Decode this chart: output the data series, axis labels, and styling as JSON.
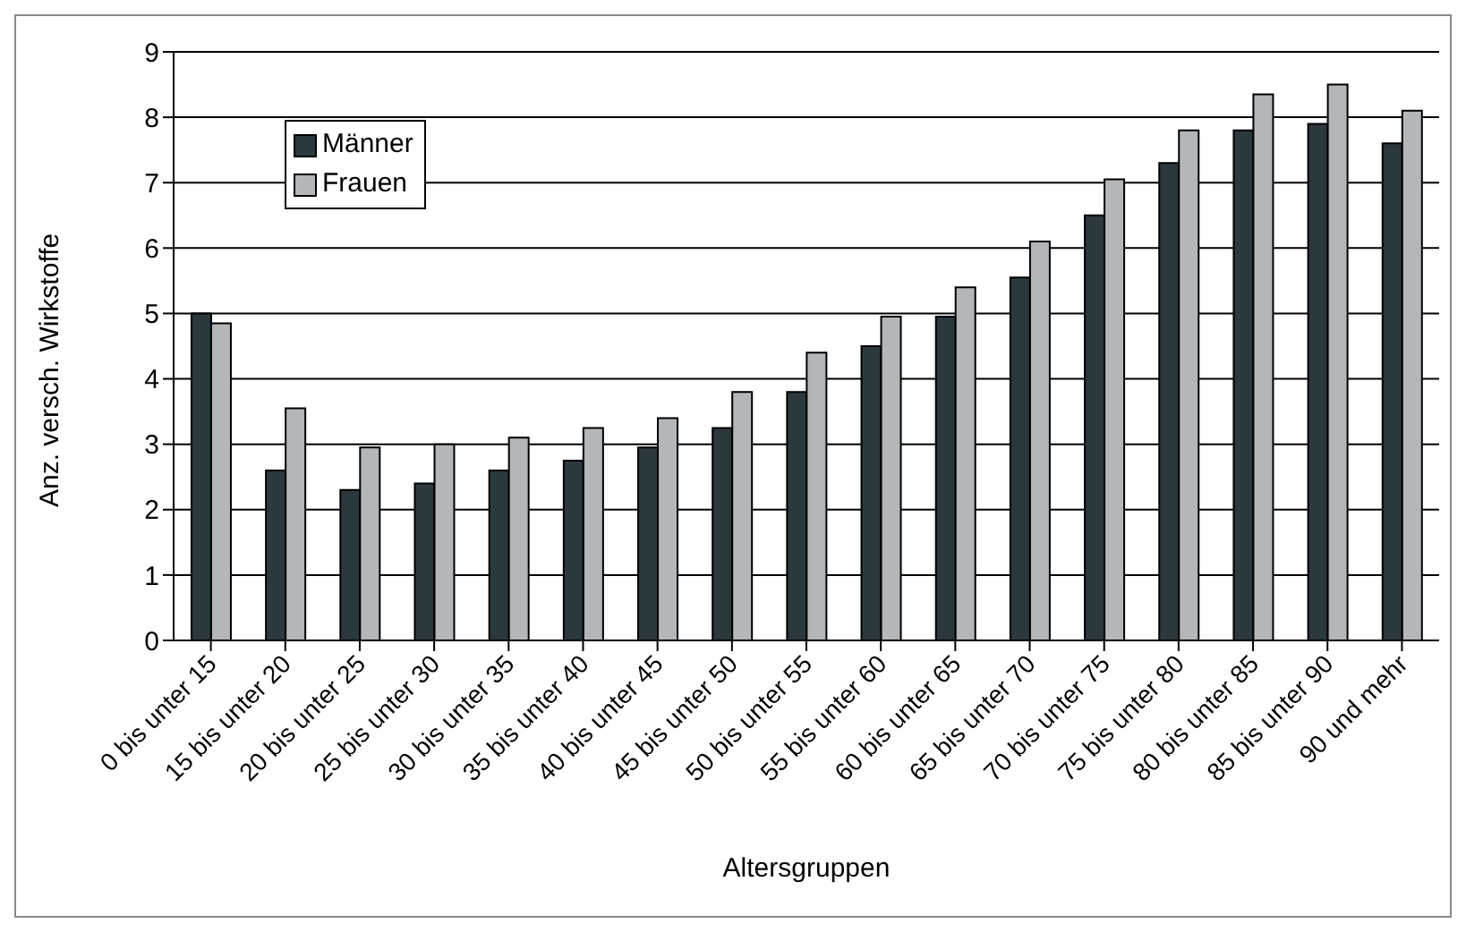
{
  "chart_data": {
    "type": "bar",
    "xlabel": "Altersgruppen",
    "ylabel": "Anz. versch. Wirkstoffe",
    "categories": [
      "0 bis unter 15",
      "15 bis unter 20",
      "20 bis unter 25",
      "25 bis unter 30",
      "30 bis unter 35",
      "35 bis unter 40",
      "40 bis unter 45",
      "45 bis unter 50",
      "50 bis unter 55",
      "55 bis unter 60",
      "60 bis unter 65",
      "65 bis unter 70",
      "70 bis unter 75",
      "75 bis unter 80",
      "80 bis unter 85",
      "85 bis unter 90",
      "90 und mehr"
    ],
    "series": [
      {
        "name": "Männer",
        "color": "#2b383c",
        "values": [
          5.0,
          2.6,
          2.3,
          2.4,
          2.6,
          2.75,
          2.95,
          3.25,
          3.8,
          4.5,
          4.95,
          5.55,
          6.5,
          7.3,
          7.8,
          7.9,
          7.6
        ]
      },
      {
        "name": "Frauen",
        "color": "#b4b7ba",
        "values": [
          4.85,
          3.55,
          2.95,
          3.0,
          3.1,
          3.25,
          3.4,
          3.8,
          4.4,
          4.95,
          5.4,
          6.1,
          7.05,
          7.8,
          8.35,
          8.5,
          8.1
        ]
      }
    ],
    "ylim": [
      0,
      9
    ],
    "yticks": [
      0,
      1,
      2,
      3,
      4,
      5,
      6,
      7,
      8,
      9
    ],
    "grid": "y",
    "legend": "top left"
  }
}
